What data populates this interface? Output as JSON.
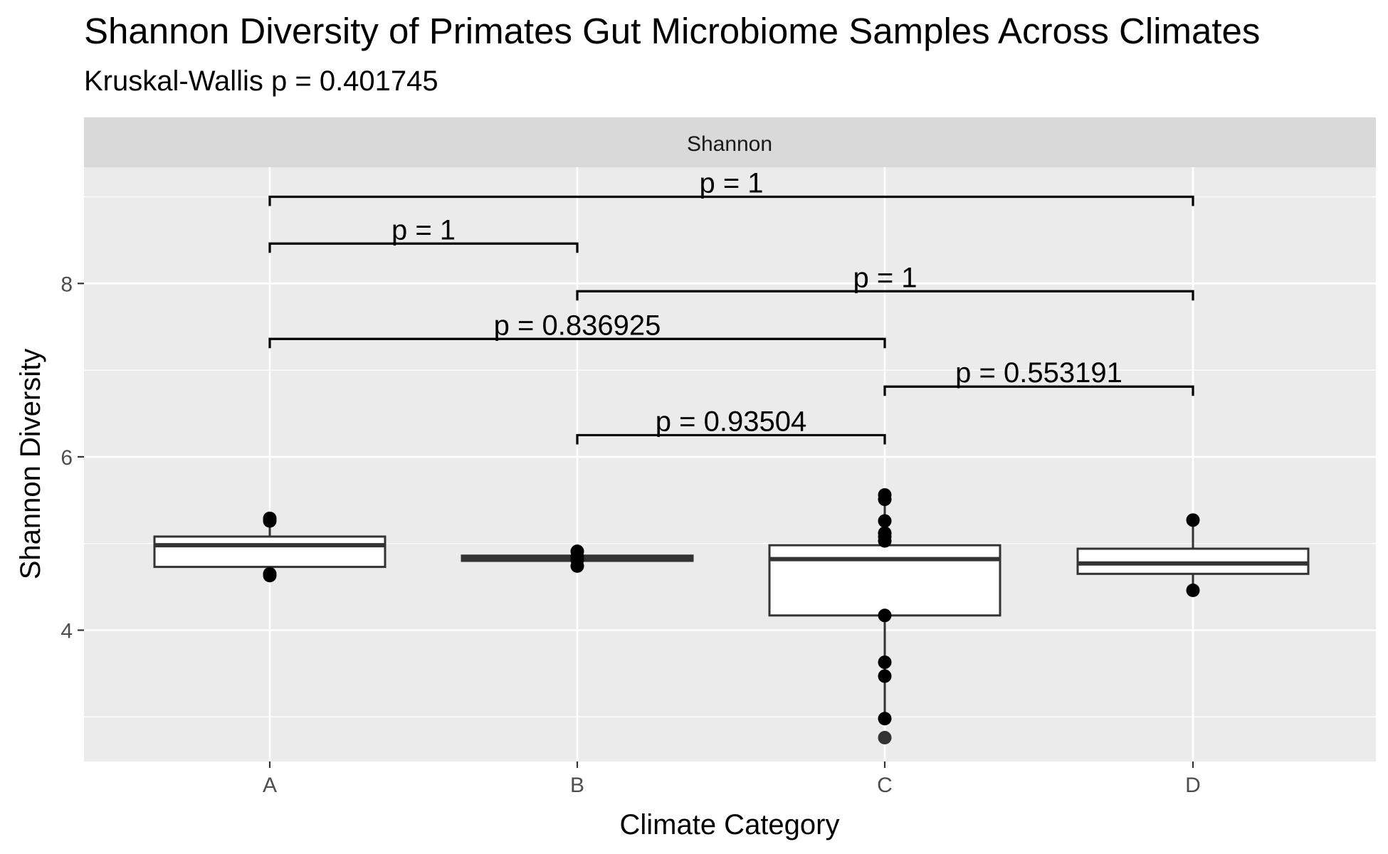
{
  "chart_data": {
    "type": "boxplot",
    "title": "Shannon Diversity of Primates Gut Microbiome Samples Across Climates",
    "subtitle": "Kruskal-Wallis p = 0.401745",
    "facet_label": "Shannon",
    "xlabel": "Climate Category",
    "ylabel": "Shannon Diversity",
    "categories": [
      "A",
      "B",
      "C",
      "D"
    ],
    "ylim": [
      2.5,
      9.4
    ],
    "yticks": [
      4,
      6,
      8
    ],
    "grid": true,
    "colors": {
      "panel_bg": "#ebebeb",
      "strip_bg": "#d9d9d9",
      "grid": "#ffffff",
      "box_fill": "#ffffff",
      "box_line": "#333333",
      "point": "#000000",
      "bracket": "#000000"
    },
    "boxes": [
      {
        "category": "A",
        "lower_whisker": 4.64,
        "q1": 4.73,
        "median": 4.98,
        "q3": 5.08,
        "upper_whisker": 5.29
      },
      {
        "category": "B",
        "lower_whisker": 4.8,
        "q1": 4.8,
        "median": 4.83,
        "q3": 4.86,
        "upper_whisker": 4.86
      },
      {
        "category": "C",
        "lower_whisker": 2.98,
        "q1": 4.17,
        "median": 4.82,
        "q3": 4.98,
        "upper_whisker": 5.55
      },
      {
        "category": "D",
        "lower_whisker": 4.46,
        "q1": 4.65,
        "median": 4.77,
        "q3": 4.94,
        "upper_whisker": 5.27
      }
    ],
    "points": [
      {
        "category": "A",
        "values": [
          5.29,
          5.26,
          4.65,
          4.63
        ]
      },
      {
        "category": "B",
        "values": [
          4.91,
          4.85,
          4.81,
          4.74
        ]
      },
      {
        "category": "C",
        "values": [
          5.56,
          5.51,
          5.26,
          5.12,
          5.08,
          5.03,
          4.17,
          3.63,
          3.47,
          2.98
        ]
      },
      {
        "category": "D",
        "values": [
          5.27,
          4.46
        ]
      }
    ],
    "outliers": [
      {
        "category": "C",
        "values": [
          2.76
        ]
      }
    ],
    "comparisons": [
      {
        "from": "A",
        "to": "D",
        "y": 9.0,
        "label": "p = 1"
      },
      {
        "from": "A",
        "to": "B",
        "y": 8.46,
        "label": "p = 1"
      },
      {
        "from": "B",
        "to": "D",
        "y": 7.91,
        "label": "p = 1"
      },
      {
        "from": "A",
        "to": "C",
        "y": 7.36,
        "label": "p = 0.836925"
      },
      {
        "from": "C",
        "to": "D",
        "y": 6.81,
        "label": "p = 0.553191"
      },
      {
        "from": "B",
        "to": "C",
        "y": 6.25,
        "label": "p = 0.93504"
      }
    ]
  }
}
